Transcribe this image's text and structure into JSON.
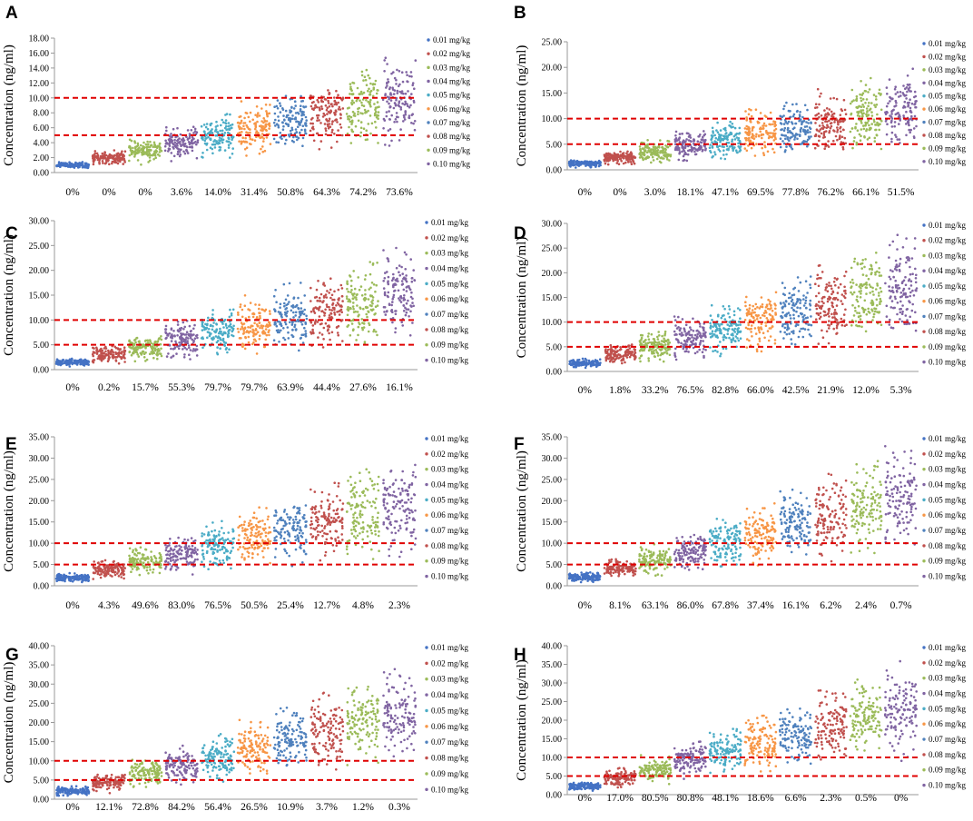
{
  "colors": {
    "palette": [
      "#4472C4",
      "#C0504D",
      "#9BBB59",
      "#8064A2",
      "#4BACC6",
      "#F79646",
      "#4F81BD",
      "#C0504D",
      "#9BBB59",
      "#8064A2"
    ],
    "threshold_line": "#E00000",
    "axis": "#999999"
  },
  "chart_data": [
    {
      "panel": "A",
      "type": "scatter",
      "ylabel": "Concentration (ng/ml)",
      "ylim": [
        0,
        18
      ],
      "yticks": [
        "0.00",
        "2.00",
        "4.00",
        "6.00",
        "8.00",
        "10.00",
        "12.00",
        "14.00",
        "16.00",
        "18.00"
      ],
      "thresholds": [
        5,
        10
      ],
      "legend": [
        "0.01 mg/kg",
        "0.02 mg/kg",
        "0.03 mg/kg",
        "0.04 mg/kg",
        "0.05 mg/kg",
        "0.06 mg/kg",
        "0.07 mg/kg",
        "0.08 mg/kg",
        "0.09 mg/kg",
        "0.10 mg/kg"
      ],
      "percentages": [
        "0%",
        "0%",
        "0%",
        "3.6%",
        "14.0%",
        "31.4%",
        "50.8%",
        "64.3%",
        "74.2%",
        "73.6%"
      ],
      "series_mean": [
        1.0,
        2.0,
        2.9,
        3.9,
        4.8,
        5.8,
        6.7,
        7.7,
        8.6,
        9.6
      ],
      "series_max": [
        1.5,
        3.0,
        4.5,
        6.3,
        7.9,
        9.6,
        11.0,
        12.5,
        14.6,
        15.8
      ]
    },
    {
      "panel": "B",
      "type": "scatter",
      "ylabel": "Concentration (ng/ml)",
      "ylim": [
        0,
        25
      ],
      "yticks": [
        "0.00",
        "5.00",
        "10.00",
        "15.00",
        "20.00",
        "25.00"
      ],
      "thresholds": [
        5,
        10
      ],
      "legend": [
        "0.01 mg/kg",
        "0.02 mg/kg",
        "0.03 mg/kg",
        "0.04 mg/kg",
        "0.05 mg/kg",
        "0.06 mg/kg",
        "0.07 mg/kg",
        "0.08 mg/kg",
        "0.09 mg/kg",
        "0.10 mg/kg"
      ],
      "percentages": [
        "0%",
        "0%",
        "3.0%",
        "18.1%",
        "47.1%",
        "69.5%",
        "77.8%",
        "76.2%",
        "66.1%",
        "51.5%"
      ],
      "series_mean": [
        1.2,
        2.4,
        3.5,
        4.6,
        5.8,
        7.0,
        8.1,
        9.2,
        10.4,
        11.5
      ],
      "series_max": [
        1.9,
        3.8,
        5.8,
        8.0,
        10.0,
        12.0,
        14.0,
        16.0,
        18.0,
        20.0
      ]
    },
    {
      "panel": "C",
      "type": "scatter",
      "ylabel": "Concentration (ng/ml)",
      "ylim": [
        0,
        30
      ],
      "yticks": [
        "0.00",
        "5.00",
        "10.00",
        "15.00",
        "20.00",
        "25.00",
        "30.00"
      ],
      "thresholds": [
        5,
        10
      ],
      "legend": [
        "0.01 mg/kg",
        "0.02 mg/kg",
        "0.03 mg/kg",
        "0.04 mg/kg",
        "0.05 mg/kg",
        "0.06 mg/kg",
        "0.07 mg/kg",
        "0.08 mg/kg",
        "0.09 mg/kg",
        "0.10 mg/kg"
      ],
      "percentages": [
        "0%",
        "0.2%",
        "15.7%",
        "55.3%",
        "79.7%",
        "79.7%",
        "63.9%",
        "44.4%",
        "27.6%",
        "16.1%"
      ],
      "series_mean": [
        1.5,
        3.0,
        4.5,
        5.9,
        7.4,
        8.9,
        10.4,
        11.9,
        13.4,
        14.8
      ],
      "series_max": [
        2.3,
        4.8,
        7.3,
        10.0,
        12.5,
        15.0,
        17.5,
        20.0,
        22.5,
        25.0
      ]
    },
    {
      "panel": "D",
      "type": "scatter",
      "ylabel": "Concentration (ng/ml)",
      "ylim": [
        0,
        30
      ],
      "yticks": [
        "0.00",
        "5.00",
        "10.00",
        "15.00",
        "20.00",
        "25.00",
        "30.00"
      ],
      "thresholds": [
        5,
        10
      ],
      "legend": [
        "0.01 mg/kg",
        "0.02 mg/kg",
        "0.03 mg/kg",
        "0.04 mg/kg",
        "0.05 mg/kg",
        "0.06 mg/kg",
        "0.07 mg/kg",
        "0.08 mg/kg",
        "0.09 mg/kg",
        "0.10 mg/kg"
      ],
      "percentages": [
        "0%",
        "1.8%",
        "33.2%",
        "76.5%",
        "82.8%",
        "66.0%",
        "42.5%",
        "21.9%",
        "12.0%",
        "5.3%"
      ],
      "series_mean": [
        1.7,
        3.4,
        5.1,
        6.8,
        8.5,
        10.2,
        11.9,
        13.6,
        15.3,
        17.0
      ],
      "series_max": [
        2.6,
        5.5,
        8.4,
        11.2,
        14.0,
        16.8,
        19.6,
        22.5,
        25.5,
        28.5
      ]
    },
    {
      "panel": "E",
      "type": "scatter",
      "ylabel": "Concentration (ng/ml)",
      "ylim": [
        0,
        35
      ],
      "yticks": [
        "0.00",
        "5.00",
        "10.00",
        "15.00",
        "20.00",
        "25.00",
        "30.00",
        "35.00"
      ],
      "thresholds": [
        5,
        10
      ],
      "legend": [
        "0.01 mg/kg",
        "0.02 mg/kg",
        "0.03 mg/kg",
        "0.04 mg/kg",
        "0.05 mg/kg",
        "0.06 mg/kg",
        "0.07 mg/kg",
        "0.08 mg/kg",
        "0.09 mg/kg",
        "0.10 mg/kg"
      ],
      "percentages": [
        "0%",
        "4.3%",
        "49.6%",
        "83.0%",
        "76.5%",
        "50.5%",
        "25.4%",
        "12.7%",
        "4.8%",
        "2.3%"
      ],
      "series_mean": [
        1.9,
        3.8,
        5.6,
        7.5,
        9.4,
        11.3,
        13.2,
        15.0,
        16.9,
        18.8
      ],
      "series_max": [
        3.0,
        6.1,
        9.2,
        12.3,
        15.4,
        18.5,
        21.6,
        24.7,
        27.8,
        31.0
      ]
    },
    {
      "panel": "F",
      "type": "scatter",
      "ylabel": "Concentration (ng/ml)",
      "ylim": [
        0,
        35
      ],
      "yticks": [
        "0.00",
        "5.00",
        "10.00",
        "15.00",
        "20.00",
        "25.00",
        "30.00",
        "35.00"
      ],
      "thresholds": [
        5,
        10
      ],
      "legend": [
        "0.01 mg/kg",
        "0.02 mg/kg",
        "0.03 mg/kg",
        "0.04 mg/kg",
        "0.05 mg/kg",
        "0.06 mg/kg",
        "0.07 mg/kg",
        "0.08 mg/kg",
        "0.09 mg/kg",
        "0.10 mg/kg"
      ],
      "percentages": [
        "0%",
        "8.1%",
        "63.1%",
        "86.0%",
        "67.8%",
        "37.4%",
        "16.1%",
        "6.2%",
        "2.4%",
        "0.7%"
      ],
      "series_mean": [
        2.0,
        4.1,
        6.1,
        8.1,
        10.2,
        12.2,
        14.2,
        16.3,
        18.3,
        20.3
      ],
      "series_max": [
        3.2,
        6.5,
        9.8,
        13.1,
        16.4,
        19.7,
        23.0,
        26.3,
        29.6,
        33.0
      ]
    },
    {
      "panel": "G",
      "type": "scatter",
      "ylabel": "Concentration (ng/ml)",
      "ylim": [
        0,
        40
      ],
      "yticks": [
        "0.00",
        "5.00",
        "10.00",
        "15.00",
        "20.00",
        "25.00",
        "30.00",
        "35.00",
        "40.00"
      ],
      "thresholds": [
        5,
        10
      ],
      "legend": [
        "0.01 mg/kg",
        "0.02 mg/kg",
        "0.03 mg/kg",
        "0.04 mg/kg",
        "0.05 mg/kg",
        "0.06 mg/kg",
        "0.07 mg/kg",
        "0.08 mg/kg",
        "0.09 mg/kg",
        "0.10 mg/kg"
      ],
      "percentages": [
        "0%",
        "12.1%",
        "72.8%",
        "84.2%",
        "56.4%",
        "26.5%",
        "10.9%",
        "3.7%",
        "1.2%",
        "0.3%"
      ],
      "series_mean": [
        2.2,
        4.4,
        6.6,
        8.8,
        11.0,
        13.2,
        15.4,
        17.5,
        19.7,
        21.9
      ],
      "series_max": [
        3.4,
        7.0,
        10.5,
        14.0,
        17.5,
        21.0,
        24.5,
        28.0,
        31.0,
        34.5
      ]
    },
    {
      "panel": "H",
      "type": "scatter",
      "ylabel": "Concentration (ng/ml)",
      "ylim": [
        0,
        40
      ],
      "yticks": [
        "0.00",
        "5.00",
        "10.00",
        "15.00",
        "20.00",
        "25.00",
        "30.00",
        "35.00",
        "40.00"
      ],
      "thresholds": [
        5,
        10
      ],
      "legend": [
        "0.01 mg/kg",
        "0.02 mg/kg",
        "0.03 mg/kg",
        "0.04 mg/kg",
        "0.05 mg/kg",
        "0.06 mg/kg",
        "0.07 mg/kg",
        "0.08 mg/kg",
        "0.09 mg/kg",
        "0.10 mg/kg"
      ],
      "percentages": [
        "0%",
        "17.0%",
        "80.5%",
        "80.8%",
        "48.1%",
        "18.6%",
        "6.6%",
        "2.3%",
        "0.5%",
        "0%"
      ],
      "series_mean": [
        2.3,
        4.6,
        6.9,
        9.2,
        11.5,
        13.8,
        16.1,
        18.4,
        20.7,
        23.0
      ],
      "series_max": [
        3.5,
        7.2,
        10.8,
        14.5,
        18.0,
        21.5,
        25.0,
        28.8,
        32.5,
        36.0
      ]
    }
  ]
}
